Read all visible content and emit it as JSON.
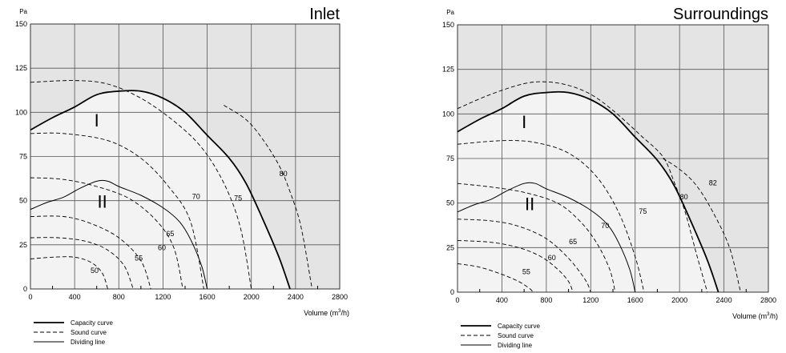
{
  "chart_data": [
    {
      "type": "line",
      "title": "Inlet",
      "ylabel": "Pa",
      "xlabel": "Volume (m³/h)",
      "xlim": [
        0,
        2800
      ],
      "ylim": [
        0,
        150
      ],
      "x_ticks": [
        "0",
        "400",
        "800",
        "1200",
        "1600",
        "2000",
        "2400",
        "2800"
      ],
      "y_ticks": [
        "0",
        "25",
        "50",
        "75",
        "100",
        "125",
        "150"
      ],
      "grid": true,
      "legend_position": "bottom-left",
      "legend": [
        {
          "label": "Capacity curve",
          "style": "thick-solid"
        },
        {
          "label": "Sound curve",
          "style": "dashed"
        },
        {
          "label": "Dividing line",
          "style": "thin-solid"
        }
      ],
      "regions": [
        {
          "label": "I"
        },
        {
          "label": "II"
        }
      ],
      "capacity_curves": [
        {
          "name": "I",
          "points": [
            [
              0,
              90
            ],
            [
              200,
              97
            ],
            [
              400,
              103
            ],
            [
              600,
              110
            ],
            [
              800,
              112
            ],
            [
              1000,
              112
            ],
            [
              1200,
              108
            ],
            [
              1400,
              100
            ],
            [
              1600,
              87
            ],
            [
              1800,
              74
            ],
            [
              1950,
              60
            ],
            [
              2100,
              40
            ],
            [
              2250,
              18
            ],
            [
              2350,
              0
            ]
          ]
        },
        {
          "name": "II",
          "points": [
            [
              0,
              45
            ],
            [
              150,
              49
            ],
            [
              300,
              52
            ],
            [
              450,
              57
            ],
            [
              600,
              61
            ],
            [
              700,
              61
            ],
            [
              800,
              58
            ],
            [
              1000,
              53
            ],
            [
              1200,
              46
            ],
            [
              1350,
              38
            ],
            [
              1450,
              28
            ],
            [
              1550,
              13
            ],
            [
              1600,
              0
            ]
          ]
        }
      ],
      "sound_curves": [
        {
          "value": "50",
          "points": [
            [
              0,
              17
            ],
            [
              200,
              18
            ],
            [
              400,
              18
            ],
            [
              550,
              15
            ],
            [
              650,
              9
            ],
            [
              700,
              0
            ]
          ]
        },
        {
          "value": "55",
          "points": [
            [
              0,
              29
            ],
            [
              250,
              29
            ],
            [
              500,
              27
            ],
            [
              700,
              22
            ],
            [
              850,
              13
            ],
            [
              930,
              0
            ]
          ]
        },
        {
          "value": "60",
          "points": [
            [
              0,
              41
            ],
            [
              300,
              41
            ],
            [
              550,
              37
            ],
            [
              800,
              29
            ],
            [
              1000,
              16
            ],
            [
              1090,
              0
            ]
          ]
        },
        {
          "value": "65",
          "points": [
            [
              0,
              63
            ],
            [
              300,
              62
            ],
            [
              600,
              58
            ],
            [
              900,
              51
            ],
            [
              1150,
              38
            ],
            [
              1300,
              23
            ],
            [
              1380,
              0
            ]
          ]
        },
        {
          "value": "70",
          "points": [
            [
              0,
              88
            ],
            [
              300,
              88
            ],
            [
              700,
              84
            ],
            [
              1000,
              74
            ],
            [
              1250,
              58
            ],
            [
              1450,
              38
            ],
            [
              1570,
              0
            ]
          ]
        },
        {
          "value": "75",
          "points": [
            [
              0,
              117
            ],
            [
              400,
              118
            ],
            [
              700,
              116
            ],
            [
              1000,
              108
            ],
            [
              1300,
              95
            ],
            [
              1550,
              80
            ],
            [
              1750,
              60
            ],
            [
              1900,
              35
            ],
            [
              2000,
              0
            ]
          ]
        },
        {
          "value": "80",
          "points": [
            [
              1750,
              104
            ],
            [
              1950,
              96
            ],
            [
              2100,
              85
            ],
            [
              2250,
              70
            ],
            [
              2350,
              55
            ],
            [
              2450,
              35
            ],
            [
              2550,
              0
            ]
          ]
        }
      ]
    },
    {
      "type": "line",
      "title": "Surroundings",
      "ylabel": "Pa",
      "xlabel": "Volume (m³/h)",
      "xlim": [
        0,
        2800
      ],
      "ylim": [
        0,
        150
      ],
      "x_ticks": [
        "0",
        "400",
        "800",
        "1200",
        "1600",
        "2000",
        "2400",
        "2800"
      ],
      "y_ticks": [
        "0",
        "25",
        "50",
        "75",
        "100",
        "125",
        "150"
      ],
      "grid": true,
      "legend_position": "bottom-left",
      "legend": [
        {
          "label": "Capacity curve",
          "style": "thick-solid"
        },
        {
          "label": "Sound curve",
          "style": "dashed"
        },
        {
          "label": "Dividing line",
          "style": "thin-solid"
        }
      ],
      "regions": [
        {
          "label": "I"
        },
        {
          "label": "II"
        }
      ],
      "capacity_curves": [
        {
          "name": "I",
          "points": [
            [
              0,
              90
            ],
            [
              200,
              97
            ],
            [
              400,
              103
            ],
            [
              600,
              110
            ],
            [
              800,
              112
            ],
            [
              1000,
              112
            ],
            [
              1200,
              108
            ],
            [
              1400,
              100
            ],
            [
              1600,
              87
            ],
            [
              1800,
              74
            ],
            [
              1950,
              60
            ],
            [
              2100,
              40
            ],
            [
              2250,
              18
            ],
            [
              2350,
              0
            ]
          ]
        },
        {
          "name": "II",
          "points": [
            [
              0,
              45
            ],
            [
              150,
              49
            ],
            [
              300,
              52
            ],
            [
              450,
              57
            ],
            [
              600,
              61
            ],
            [
              700,
              61
            ],
            [
              800,
              58
            ],
            [
              1000,
              53
            ],
            [
              1200,
              46
            ],
            [
              1350,
              38
            ],
            [
              1450,
              28
            ],
            [
              1550,
              13
            ],
            [
              1600,
              0
            ]
          ]
        }
      ],
      "sound_curves": [
        {
          "value": "55",
          "points": [
            [
              0,
              16
            ],
            [
              200,
              14
            ],
            [
              400,
              10
            ],
            [
              550,
              6
            ],
            [
              650,
              2
            ],
            [
              680,
              0
            ]
          ]
        },
        {
          "value": "60",
          "points": [
            [
              0,
              29
            ],
            [
              300,
              28
            ],
            [
              550,
              25
            ],
            [
              750,
              20
            ],
            [
              900,
              13
            ],
            [
              1000,
              6
            ],
            [
              1040,
              0
            ]
          ]
        },
        {
          "value": "65",
          "points": [
            [
              0,
              41
            ],
            [
              300,
              40
            ],
            [
              550,
              37
            ],
            [
              800,
              30
            ],
            [
              1000,
              19
            ],
            [
              1150,
              7
            ],
            [
              1200,
              0
            ]
          ]
        },
        {
          "value": "70",
          "points": [
            [
              0,
              61
            ],
            [
              300,
              59
            ],
            [
              600,
              56
            ],
            [
              900,
              50
            ],
            [
              1100,
              40
            ],
            [
              1250,
              28
            ],
            [
              1370,
              13
            ],
            [
              1420,
              0
            ]
          ]
        },
        {
          "value": "75",
          "points": [
            [
              0,
              83
            ],
            [
              400,
              85
            ],
            [
              700,
              84
            ],
            [
              1000,
              78
            ],
            [
              1250,
              65
            ],
            [
              1450,
              45
            ],
            [
              1600,
              20
            ],
            [
              1680,
              0
            ]
          ]
        },
        {
          "value": "80",
          "points": [
            [
              0,
              103
            ],
            [
              300,
              111
            ],
            [
              600,
              117
            ],
            [
              800,
              118
            ],
            [
              1000,
              116
            ],
            [
              1200,
              111
            ],
            [
              1400,
              102
            ],
            [
              1650,
              88
            ],
            [
              1850,
              76
            ],
            [
              1950,
              62
            ],
            [
              2050,
              45
            ],
            [
              2150,
              22
            ],
            [
              2250,
              0
            ]
          ]
        },
        {
          "value": "82",
          "points": [
            [
              1850,
              75
            ],
            [
              2000,
              69
            ],
            [
              2150,
              60
            ],
            [
              2300,
              45
            ],
            [
              2450,
              25
            ],
            [
              2550,
              0
            ]
          ]
        }
      ]
    }
  ]
}
